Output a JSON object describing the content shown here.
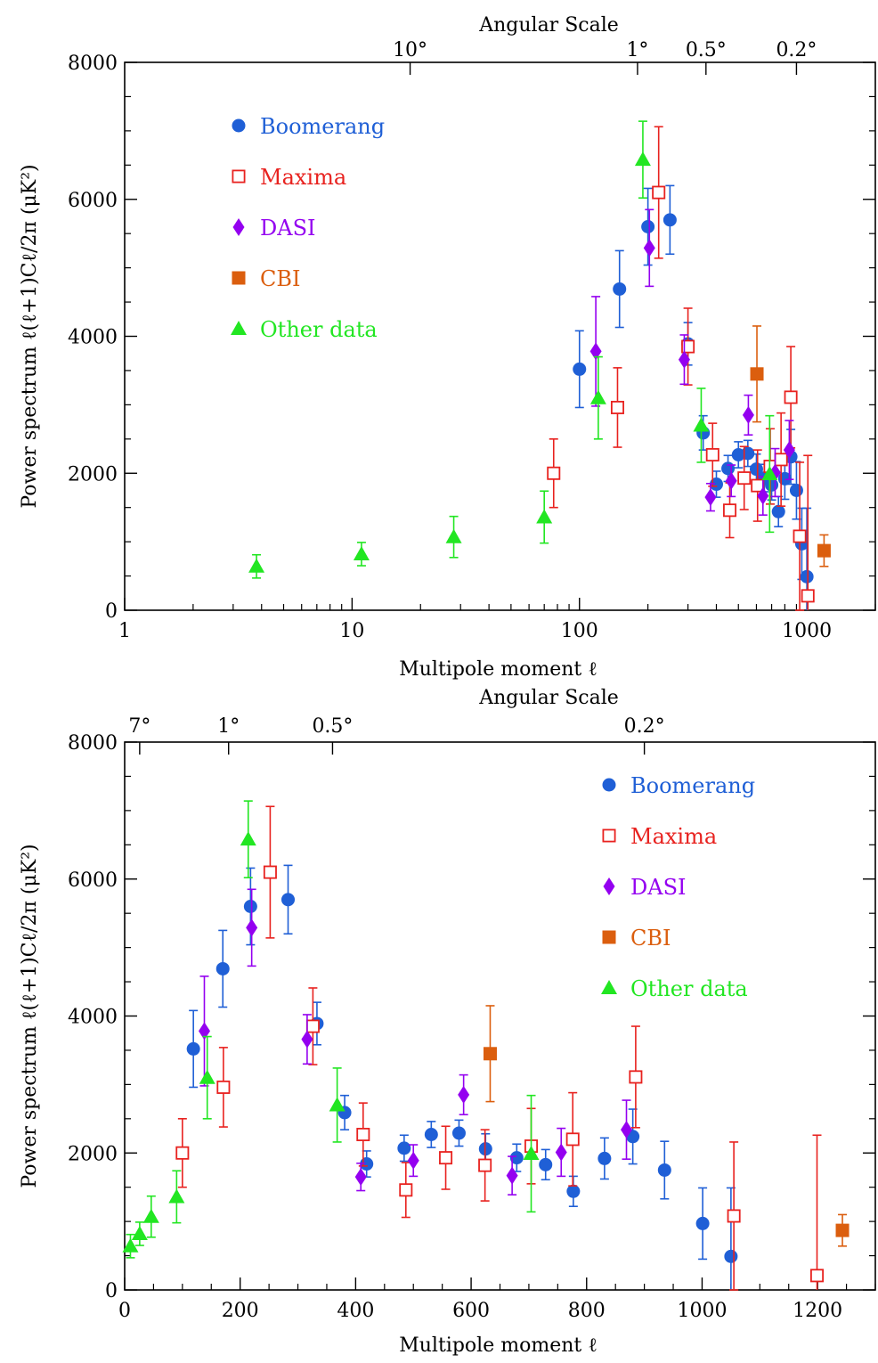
{
  "colors": {
    "Boomerang": "#1f5fd6",
    "Maxima": "#e8221f",
    "DASI": "#9400f0",
    "CBI": "#db5e0e",
    "Other data": "#22e622",
    "axis": "#000000"
  },
  "chart_data": [
    {
      "type": "scatter",
      "xscale": "log",
      "xlim": [
        1,
        2000
      ],
      "ylim": [
        0,
        8000
      ],
      "xlabel": "Multipole moment ℓ",
      "ylabel": "Power spectrum ℓ(ℓ+1)Cℓ/2π (μK²)",
      "top_axis_title": "Angular Scale",
      "top_ticks": [
        {
          "label": "10°",
          "l": 18
        },
        {
          "label": "1°",
          "l": 180
        },
        {
          "label": "0.5°",
          "l": 360
        },
        {
          "label": "0.2°",
          "l": 900
        }
      ],
      "xticks": [
        {
          "value": 1,
          "label": "1"
        },
        {
          "value": 10,
          "label": "10"
        },
        {
          "value": 100,
          "label": "100"
        },
        {
          "value": 1000,
          "label": "1000"
        }
      ],
      "yticks": [
        {
          "value": 0,
          "label": "0"
        },
        {
          "value": 2000,
          "label": "2000"
        },
        {
          "value": 4000,
          "label": "4000"
        },
        {
          "value": 6000,
          "label": "6000"
        },
        {
          "value": 8000,
          "label": "8000"
        }
      ],
      "legend_position": "top-left",
      "series": [
        {
          "name": "Boomerang",
          "marker": "circle",
          "points": [
            [
              100,
              3520,
              560
            ],
            [
              150,
              4690,
              560
            ],
            [
              200,
              5600,
              560
            ],
            [
              250,
              5700,
              500
            ],
            [
              300,
              3890,
              310
            ],
            [
              350,
              2590,
              250
            ],
            [
              400,
              1840,
              190
            ],
            [
              450,
              2070,
              190
            ],
            [
              500,
              2270,
              190
            ],
            [
              550,
              2290,
              190
            ],
            [
              600,
              2060,
              220
            ],
            [
              650,
              1930,
              200
            ],
            [
              700,
              1830,
              220
            ],
            [
              750,
              1440,
              220
            ],
            [
              800,
              1920,
              300
            ],
            [
              850,
              2240,
              400
            ],
            [
              900,
              1750,
              420
            ],
            [
              950,
              970,
              520
            ],
            [
              1000,
              490,
              1000
            ]
          ]
        },
        {
          "name": "Maxima",
          "marker": "square-open",
          "points": [
            [
              77,
              2000,
              500
            ],
            [
              147,
              2960,
              580
            ],
            [
              223,
              6100,
              960
            ],
            [
              300,
              3850,
              560
            ],
            [
              385,
              2270,
              460
            ],
            [
              458,
              1460,
              400
            ],
            [
              530,
              1930,
              460
            ],
            [
              607,
              1820,
              520
            ],
            [
              690,
              2100,
              550
            ],
            [
              770,
              2200,
              680
            ],
            [
              850,
              3110,
              740
            ],
            [
              930,
              1080,
              1080
            ],
            [
              1010,
              210,
              2050
            ]
          ]
        },
        {
          "name": "DASI",
          "marker": "diamond",
          "points": [
            [
              118,
              3780,
              800
            ],
            [
              203,
              5290,
              560
            ],
            [
              289,
              3660,
              360
            ],
            [
              377,
              1650,
              200
            ],
            [
              465,
              1890,
              230
            ],
            [
              553,
              2850,
              290
            ],
            [
              641,
              1670,
              280
            ],
            [
              725,
              2010,
              350
            ],
            [
              837,
              2340,
              430
            ]
          ]
        },
        {
          "name": "CBI",
          "marker": "square",
          "points": [
            [
              603,
              3450,
              700
            ],
            [
              1190,
              870,
              230
            ]
          ]
        },
        {
          "name": "Other data",
          "marker": "triangle",
          "points": [
            [
              3.8,
              640,
              170
            ],
            [
              11,
              820,
              170
            ],
            [
              28,
              1070,
              300
            ],
            [
              70,
              1360,
              380
            ],
            [
              121,
              3100,
              600
            ],
            [
              190,
              6580,
              560
            ],
            [
              343,
              2700,
              540
            ],
            [
              686,
              1990,
              850
            ]
          ]
        }
      ]
    },
    {
      "type": "scatter",
      "xscale": "linear",
      "xlim": [
        0,
        1300
      ],
      "ylim": [
        0,
        8000
      ],
      "xlabel": "Multipole moment ℓ",
      "ylabel": "Power spectrum ℓ(ℓ+1)Cℓ/2π (μK²)",
      "top_axis_title": "Angular Scale",
      "top_ticks": [
        {
          "label": "7°",
          "l": 26
        },
        {
          "label": "1°",
          "l": 180
        },
        {
          "label": "0.5°",
          "l": 360
        },
        {
          "label": "0.2°",
          "l": 900
        }
      ],
      "xticks": [
        {
          "value": 0,
          "label": "0"
        },
        {
          "value": 200,
          "label": "200"
        },
        {
          "value": 400,
          "label": "400"
        },
        {
          "value": 600,
          "label": "600"
        },
        {
          "value": 800,
          "label": "800"
        },
        {
          "value": 1000,
          "label": "1000"
        },
        {
          "value": 1200,
          "label": "1200"
        }
      ],
      "yticks": [
        {
          "value": 0,
          "label": "0"
        },
        {
          "value": 2000,
          "label": "2000"
        },
        {
          "value": 4000,
          "label": "4000"
        },
        {
          "value": 6000,
          "label": "6000"
        },
        {
          "value": 8000,
          "label": "8000"
        }
      ],
      "legend_position": "top-right",
      "series": [
        {
          "name": "Boomerang",
          "marker": "circle",
          "points": [
            [
              119,
              3520,
              560
            ],
            [
              170,
              4690,
              560
            ],
            [
              218,
              5600,
              560
            ],
            [
              283,
              5700,
              500
            ],
            [
              333,
              3890,
              310
            ],
            [
              381,
              2590,
              250
            ],
            [
              419,
              1840,
              190
            ],
            [
              484,
              2070,
              190
            ],
            [
              531,
              2270,
              190
            ],
            [
              579,
              2290,
              190
            ],
            [
              625,
              2060,
              220
            ],
            [
              679,
              1930,
              200
            ],
            [
              729,
              1830,
              220
            ],
            [
              777,
              1440,
              220
            ],
            [
              831,
              1920,
              300
            ],
            [
              880,
              2240,
              400
            ],
            [
              935,
              1750,
              420
            ],
            [
              1001,
              970,
              520
            ],
            [
              1050,
              490,
              1000
            ]
          ]
        },
        {
          "name": "Maxima",
          "marker": "square-open",
          "points": [
            [
              100,
              2000,
              500
            ],
            [
              171,
              2960,
              580
            ],
            [
              252,
              6100,
              960
            ],
            [
              326,
              3850,
              560
            ],
            [
              413,
              2270,
              460
            ],
            [
              487,
              1460,
              400
            ],
            [
              556,
              1930,
              460
            ],
            [
              624,
              1820,
              520
            ],
            [
              704,
              2100,
              550
            ],
            [
              776,
              2200,
              680
            ],
            [
              885,
              3110,
              740
            ],
            [
              1055,
              1080,
              1080
            ],
            [
              1199,
              210,
              2050
            ]
          ]
        },
        {
          "name": "DASI",
          "marker": "diamond",
          "points": [
            [
              138,
              3780,
              800
            ],
            [
              220,
              5290,
              560
            ],
            [
              316,
              3660,
              360
            ],
            [
              409,
              1650,
              200
            ],
            [
              500,
              1890,
              230
            ],
            [
              587,
              2850,
              290
            ],
            [
              671,
              1670,
              280
            ],
            [
              756,
              2010,
              350
            ],
            [
              869,
              2340,
              430
            ]
          ]
        },
        {
          "name": "CBI",
          "marker": "square",
          "points": [
            [
              633,
              3450,
              700
            ],
            [
              1243,
              870,
              230
            ]
          ]
        },
        {
          "name": "Other data",
          "marker": "triangle",
          "points": [
            [
              10,
              640,
              170
            ],
            [
              26,
              820,
              170
            ],
            [
              46,
              1070,
              300
            ],
            [
              90,
              1360,
              380
            ],
            [
              143,
              3100,
              600
            ],
            [
              214,
              6580,
              560
            ],
            [
              368,
              2700,
              540
            ],
            [
              704,
              1990,
              850
            ]
          ]
        }
      ]
    }
  ]
}
